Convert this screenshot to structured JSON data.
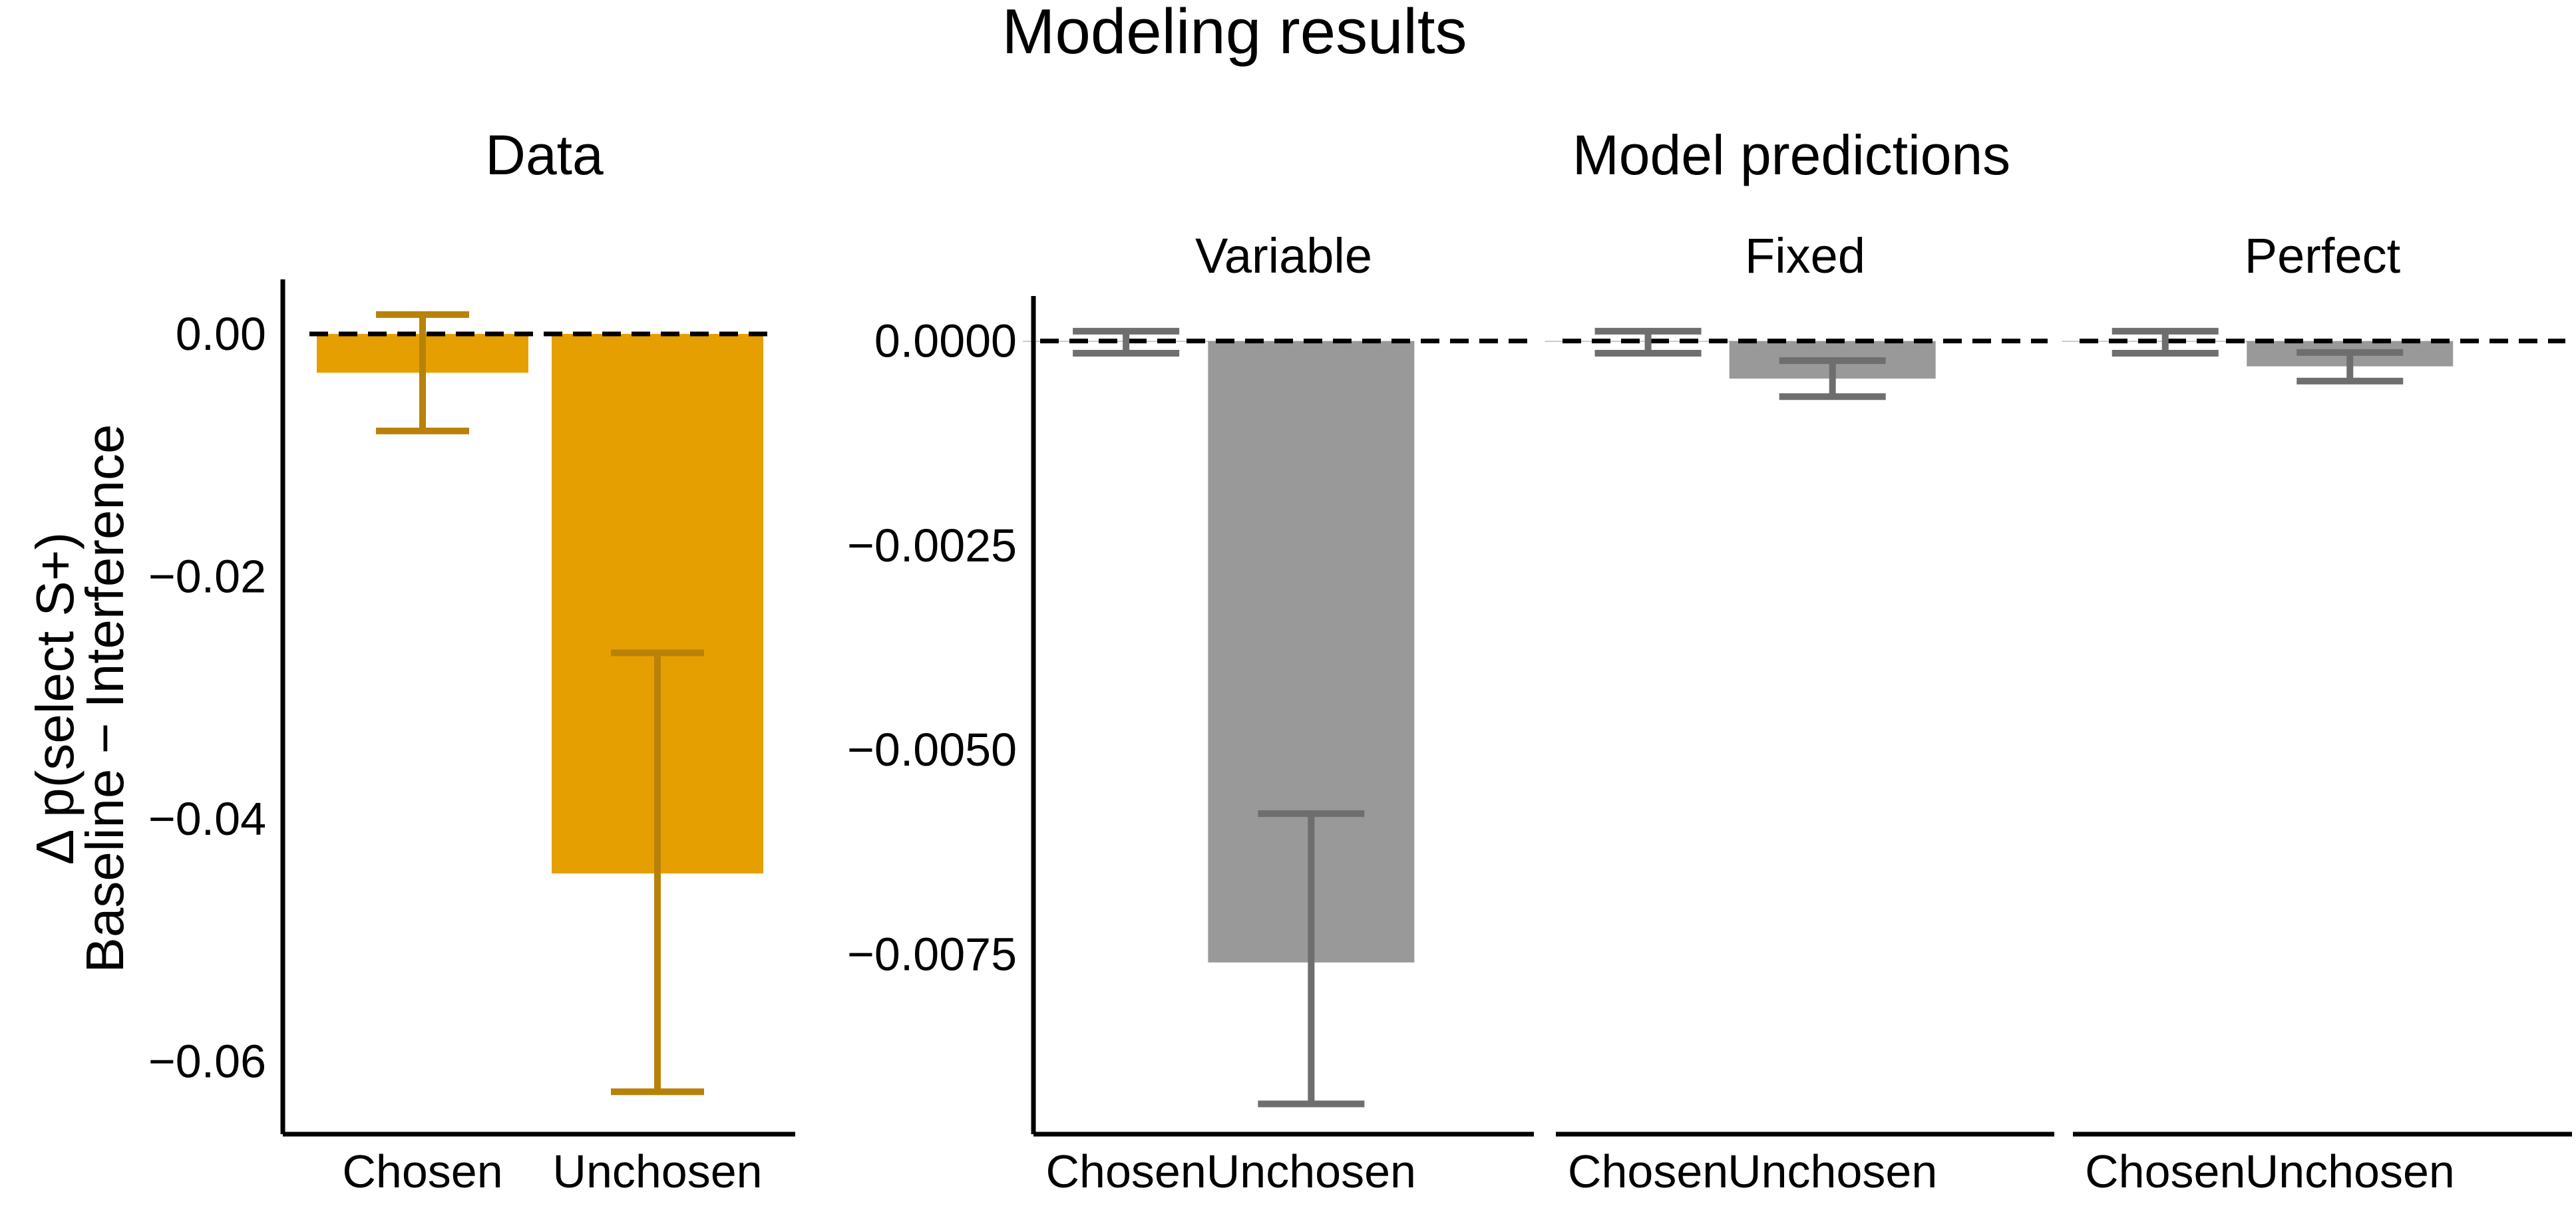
{
  "figure": {
    "title": "Modeling results",
    "data_group_title": "Data",
    "model_group_title": "Model predictions",
    "ylabel_line1": "Δ p(select S+)",
    "ylabel_line2": "Baseline − Interference"
  },
  "colors": {
    "data_bar": "#E69F00",
    "data_error": "#B8820A",
    "model_bar": "#999999",
    "model_error": "#6E6E6E",
    "axis": "#000000"
  },
  "chart_data": [
    {
      "type": "bar",
      "panel": "Data",
      "title": "",
      "categories": [
        "Chosen",
        "Unchosen"
      ],
      "values": [
        -0.0032,
        -0.0445
      ],
      "error_low": [
        -0.008,
        -0.0625
      ],
      "error_high": [
        0.0016,
        -0.0263
      ],
      "ylim": [
        -0.066,
        0.0045
      ],
      "yticks": [
        0.0,
        -0.02,
        -0.04,
        -0.06
      ],
      "ytick_labels": [
        "0.00",
        "−0.02",
        "−0.04",
        "−0.06"
      ],
      "reference_line": 0
    },
    {
      "type": "bar",
      "panel": "Model predictions",
      "title": "Variable",
      "categories": [
        "Chosen",
        "Unchosen"
      ],
      "values": [
        0.0,
        -0.0076
      ],
      "error_low": [
        -0.00015,
        -0.00933
      ],
      "error_high": [
        0.00012,
        -0.00578
      ],
      "ylim": [
        -0.0097,
        0.00055
      ],
      "yticks": [
        0.0,
        -0.0025,
        -0.005,
        -0.0075
      ],
      "ytick_labels": [
        "0.0000",
        "−0.0025",
        "−0.0050",
        "−0.0075"
      ],
      "reference_line": 0
    },
    {
      "type": "bar",
      "panel": "Model predictions",
      "title": "Fixed",
      "categories": [
        "Chosen",
        "Unchosen"
      ],
      "values": [
        0.0,
        -0.00046
      ],
      "error_low": [
        -0.00015,
        -0.00068
      ],
      "error_high": [
        0.00012,
        -0.00024
      ],
      "ylim": [
        -0.0097,
        0.00055
      ],
      "reference_line": 0
    },
    {
      "type": "bar",
      "panel": "Model predictions",
      "title": "Perfect",
      "categories": [
        "Chosen",
        "Unchosen"
      ],
      "values": [
        0.0,
        -0.00031
      ],
      "error_low": [
        -0.00015,
        -0.00049
      ],
      "error_high": [
        0.00012,
        -0.00014
      ],
      "ylim": [
        -0.0097,
        0.00055
      ],
      "reference_line": 0
    }
  ]
}
